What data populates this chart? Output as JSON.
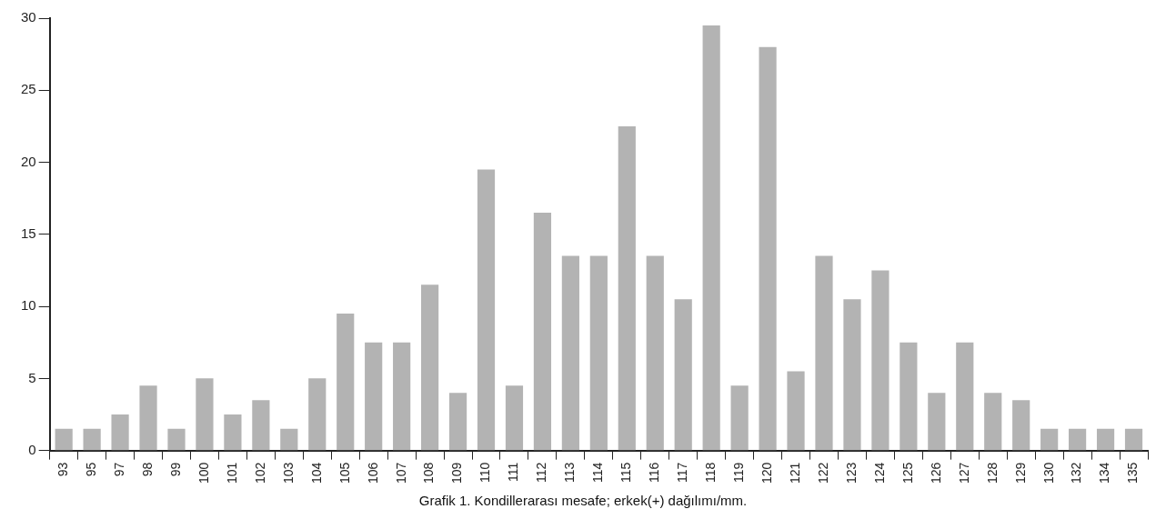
{
  "chart_data": {
    "type": "bar",
    "title": "Grafik 1. Kondillerarası mesafe; erkek(+) dağılımı/mm.",
    "categories": [
      "93",
      "95",
      "97",
      "98",
      "99",
      "100",
      "101",
      "102",
      "103",
      "104",
      "105",
      "106",
      "107",
      "108",
      "109",
      "110",
      "111",
      "112",
      "113",
      "114",
      "115",
      "116",
      "117",
      "118",
      "119",
      "120",
      "121",
      "122",
      "123",
      "124",
      "125",
      "126",
      "127",
      "128",
      "129",
      "130",
      "132",
      "134",
      "135"
    ],
    "values": [
      1.5,
      1.5,
      2.5,
      4.5,
      1.5,
      5,
      2.5,
      3.5,
      1.5,
      5,
      9.5,
      7.5,
      7.5,
      11.5,
      4,
      19.5,
      4.5,
      16.5,
      13.5,
      13.5,
      22.5,
      13.5,
      10.5,
      29.5,
      4.5,
      28,
      5.5,
      13.5,
      10.5,
      12.5,
      7.5,
      4,
      7.5,
      4,
      3.5,
      1.5,
      1.5,
      1.5,
      1.5
    ],
    "color": "#b3b3b3",
    "ylim": [
      0,
      30
    ],
    "yticks": [
      0,
      5,
      10,
      15,
      20,
      25,
      30
    ],
    "grid": false,
    "legend": false
  }
}
